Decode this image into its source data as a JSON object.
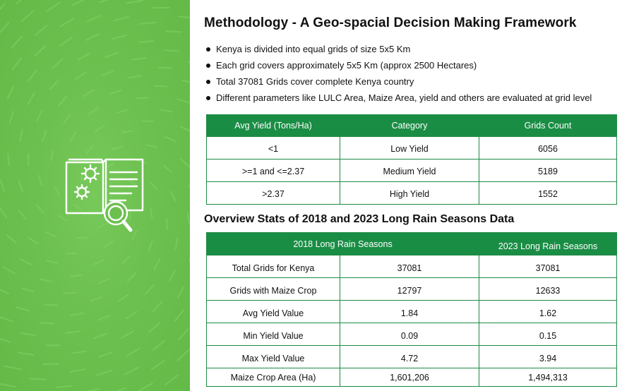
{
  "title": "Methodology - A Geo-spacial Decision Making Framework",
  "bullets": [
    "Kenya is divided into equal grids of size 5x5 Km",
    "Each grid covers approximately 5x5 Km (approx 2500 Hectares)",
    "Total 37081 Grids cover complete Kenya country",
    "Different parameters like LULC Area, Maize Area, yield and others are evaluated at grid level"
  ],
  "yield_table": {
    "headers": [
      "Avg Yield (Tons/Ha)",
      "Category",
      "Grids Count"
    ],
    "rows": [
      [
        "<1",
        "Low Yield",
        "6056"
      ],
      [
        ">=1 and <=2.37",
        "Medium Yield",
        "5189"
      ],
      [
        ">2.37",
        "High Yield",
        "1552"
      ]
    ]
  },
  "overview_title": "Overview Stats of 2018 and 2023 Long Rain Seasons Data",
  "stats_table": {
    "headers": [
      "2018 Long Rain Seasons",
      "2023 Long Rain Seasons"
    ],
    "rows": [
      [
        "Total Grids for Kenya",
        "37081",
        "37081"
      ],
      [
        "Grids with Maize Crop",
        "12797",
        "12633"
      ],
      [
        "Avg Yield Value",
        "1.84",
        "1.62"
      ],
      [
        "Min Yield Value",
        "0.09",
        "0.15"
      ],
      [
        "Max Yield Value",
        "4.72",
        "3.94"
      ],
      [
        "Maize Crop Area (Ha)",
        "1,601,206",
        "1,494,313"
      ]
    ]
  },
  "colors": {
    "panel_green": "#6cc04f",
    "table_header_green": "#1a8d45",
    "icon_white": "#ffffff"
  },
  "icons": {
    "hero": "book-gears-magnifier-icon"
  }
}
